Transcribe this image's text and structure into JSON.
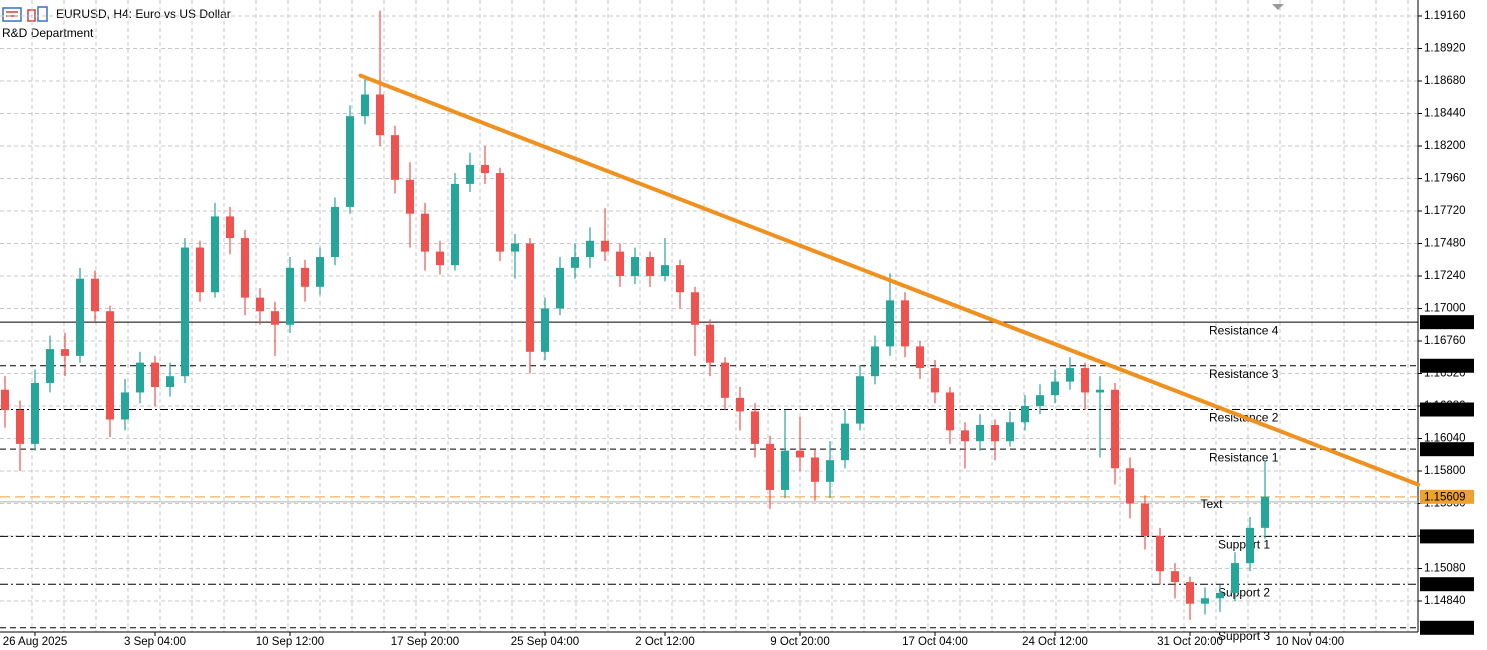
{
  "chart_data": {
    "type": "candlestick",
    "title": "EURUSD, H4:  Euro vs US Dollar",
    "subtitle": "R&D Department",
    "categories": [
      null,
      null,
      "26 Aug 2025",
      null,
      null,
      null,
      null,
      null,
      null,
      null,
      "3 Sep 04:00",
      null,
      null,
      null,
      null,
      null,
      null,
      null,
      null,
      "10 Sep 12:00",
      null,
      null,
      null,
      null,
      null,
      null,
      null,
      null,
      "17 Sep 20:00",
      null,
      null,
      null,
      null,
      null,
      null,
      null,
      "25 Sep 04:00",
      null,
      null,
      null,
      null,
      null,
      null,
      null,
      "2 Oct 12:00",
      null,
      null,
      null,
      null,
      null,
      null,
      null,
      null,
      "9 Oct 20:00",
      null,
      null,
      null,
      null,
      null,
      null,
      null,
      null,
      "17 Oct 04:00",
      null,
      null,
      null,
      null,
      null,
      null,
      null,
      "24 Oct 12:00",
      null,
      null,
      null,
      null,
      null,
      null,
      null,
      null,
      "31 Oct 20:00",
      null,
      null,
      null,
      null,
      null,
      null,
      null,
      "10 Nov 04:00",
      null
    ],
    "open": [
      1.164,
      1.1625,
      1.16,
      1.1645,
      1.167,
      1.1665,
      1.1722,
      1.1698,
      1.1618,
      1.1638,
      1.166,
      1.1642,
      1.165,
      1.1745,
      1.1712,
      1.1768,
      1.1752,
      1.1708,
      1.1698,
      1.1688,
      1.173,
      1.1716,
      1.1738,
      1.1775,
      1.1842,
      1.1858,
      1.1828,
      1.1795,
      1.177,
      1.1742,
      1.1732,
      1.1792,
      1.1806,
      1.18,
      1.1742,
      1.1748,
      1.1668,
      1.17,
      1.173,
      1.1738,
      1.175,
      1.1742,
      1.1724,
      1.1738,
      1.1724,
      1.1732,
      1.1712,
      1.1688,
      1.166,
      1.1634,
      1.1624,
      1.16,
      1.1566,
      1.1595,
      1.159,
      1.1572,
      1.1588,
      1.1615,
      1.165,
      1.1672,
      1.1706,
      1.1672,
      1.1656,
      1.1638,
      1.161,
      1.1602,
      1.1614,
      1.1602,
      1.1616,
      1.1628,
      1.1636,
      1.1646,
      1.1656,
      1.1638,
      1.164,
      1.1582,
      1.1556,
      1.1532,
      1.1506,
      1.1498,
      1.1482,
      1.1486,
      1.149,
      1.1512,
      1.1538,
      null,
      null,
      null,
      null
    ],
    "high": [
      1.165,
      1.1632,
      1.1655,
      1.168,
      1.1682,
      1.173,
      1.1728,
      1.1702,
      1.1648,
      1.1668,
      1.1665,
      1.166,
      1.1752,
      1.175,
      1.1778,
      1.1775,
      1.1758,
      1.1715,
      1.1705,
      1.1738,
      1.1736,
      1.1745,
      1.1782,
      1.185,
      1.1872,
      1.192,
      1.1835,
      1.1808,
      1.1778,
      1.175,
      1.18,
      1.1815,
      1.182,
      1.1804,
      1.1755,
      1.1752,
      1.1708,
      1.1738,
      1.1748,
      1.176,
      1.1774,
      1.1748,
      1.1745,
      1.1742,
      1.1752,
      1.1736,
      1.1716,
      1.1692,
      1.1664,
      1.1642,
      1.163,
      1.1606,
      1.1625,
      1.162,
      1.1596,
      1.1602,
      1.1625,
      1.1658,
      1.168,
      1.1726,
      1.1712,
      1.1676,
      1.1662,
      1.1642,
      1.1616,
      1.1622,
      1.1618,
      1.1624,
      1.1636,
      1.1644,
      1.1655,
      1.1664,
      1.166,
      1.165,
      1.1645,
      1.159,
      1.1562,
      1.1538,
      1.1512,
      1.1502,
      1.1494,
      1.1496,
      1.152,
      1.1546,
      1.1588,
      null,
      null,
      null,
      null
    ],
    "low": [
      1.1612,
      1.158,
      1.1595,
      1.1638,
      1.165,
      1.166,
      1.169,
      1.1605,
      1.161,
      1.163,
      1.1628,
      1.1635,
      1.1645,
      1.1705,
      1.1708,
      1.174,
      1.1695,
      1.1688,
      1.1665,
      1.1682,
      1.1705,
      1.171,
      1.1732,
      1.177,
      1.1836,
      1.182,
      1.1785,
      1.1745,
      1.1728,
      1.1725,
      1.1728,
      1.1786,
      1.1792,
      1.1735,
      1.1722,
      1.1652,
      1.1662,
      1.1695,
      1.1722,
      1.173,
      1.1735,
      1.1716,
      1.1718,
      1.1716,
      1.172,
      1.17,
      1.1665,
      1.165,
      1.1625,
      1.161,
      1.159,
      1.1552,
      1.156,
      1.158,
      1.1558,
      1.156,
      1.1582,
      1.161,
      1.1644,
      1.1665,
      1.1664,
      1.1648,
      1.163,
      1.16,
      1.1582,
      1.1595,
      1.1588,
      1.1598,
      1.161,
      1.1622,
      1.163,
      1.164,
      1.1625,
      1.159,
      1.157,
      1.1545,
      1.1522,
      1.1496,
      1.1486,
      1.147,
      1.1474,
      1.1476,
      1.1484,
      1.1506,
      1.153,
      null,
      null,
      null,
      null
    ],
    "close": [
      1.1625,
      1.16,
      1.1645,
      1.167,
      1.1665,
      1.1722,
      1.1698,
      1.1618,
      1.1638,
      1.166,
      1.1642,
      1.165,
      1.1745,
      1.1712,
      1.1768,
      1.1752,
      1.1708,
      1.1698,
      1.1688,
      1.173,
      1.1716,
      1.1738,
      1.1775,
      1.1842,
      1.1858,
      1.1828,
      1.1795,
      1.177,
      1.1742,
      1.1732,
      1.1792,
      1.1806,
      1.18,
      1.1742,
      1.1748,
      1.1668,
      1.17,
      1.173,
      1.1738,
      1.175,
      1.1742,
      1.1724,
      1.1738,
      1.1724,
      1.1732,
      1.1712,
      1.1688,
      1.166,
      1.1634,
      1.1624,
      1.16,
      1.1566,
      1.1595,
      1.159,
      1.1572,
      1.1588,
      1.1615,
      1.165,
      1.1672,
      1.1706,
      1.1672,
      1.1656,
      1.1638,
      1.161,
      1.1602,
      1.1614,
      1.1602,
      1.1616,
      1.1628,
      1.1636,
      1.1646,
      1.1656,
      1.1638,
      1.164,
      1.1582,
      1.1556,
      1.1532,
      1.1506,
      1.1498,
      1.1482,
      1.1486,
      1.149,
      1.1512,
      1.1538,
      1.1561,
      null,
      null,
      null,
      null
    ],
    "up_color": "#26a69a",
    "down_color": "#ef5350",
    "ylim": [
      1.14611,
      1.19278
    ],
    "yticks": [
      {
        "value": 1.1916,
        "label": "1.19160"
      },
      {
        "value": 1.1892,
        "label": "1.18920"
      },
      {
        "value": 1.1868,
        "label": "1.18680"
      },
      {
        "value": 1.1844,
        "label": "1.18440"
      },
      {
        "value": 1.182,
        "label": "1.18200"
      },
      {
        "value": 1.1796,
        "label": "1.17960"
      },
      {
        "value": 1.1772,
        "label": "1.17720"
      },
      {
        "value": 1.1748,
        "label": "1.17480"
      },
      {
        "value": 1.1724,
        "label": "1.17240"
      },
      {
        "value": 1.17,
        "label": "1.17000"
      },
      {
        "value": 1.1676,
        "label": "1.16760"
      },
      {
        "value": 1.1652,
        "label": "1.16520"
      },
      {
        "value": 1.1628,
        "label": "1.16280"
      },
      {
        "value": 1.1604,
        "label": "1.16040"
      },
      {
        "value": 1.158,
        "label": "1.15800"
      },
      {
        "value": 1.1556,
        "label": "1.15560"
      },
      {
        "value": 1.1532,
        "label": "1.15320"
      },
      {
        "value": 1.1508,
        "label": "1.15080"
      },
      {
        "value": 1.1484,
        "label": "1.14840"
      }
    ],
    "grid": true,
    "levels": [
      {
        "name": "Resistance 4",
        "value": 1.16899,
        "style": "solid"
      },
      {
        "name": "Resistance 3",
        "value": 1.16577,
        "style": "dashed"
      },
      {
        "name": "Resistance 2",
        "value": 1.16254,
        "style": "dashdot"
      },
      {
        "name": "Resistance 1",
        "value": 1.15961,
        "style": "dashed"
      },
      {
        "name": "Support 1",
        "value": 1.15317,
        "style": "dashdot"
      },
      {
        "name": "Support 2",
        "value": 1.14964,
        "style": "dashdot"
      },
      {
        "name": "Support 3",
        "value": 1.14642,
        "style": "dashed"
      }
    ],
    "current_price": {
      "value": 1.15609,
      "color": "#f0a030"
    },
    "trendline": {
      "x": [
        23.7,
        94.2
      ],
      "y": [
        1.1872,
        1.157
      ],
      "color": "#f0901e"
    },
    "annotation": {
      "text": "Text",
      "x": 79.7,
      "y": 1.1555,
      "color": "#f0a030"
    }
  }
}
